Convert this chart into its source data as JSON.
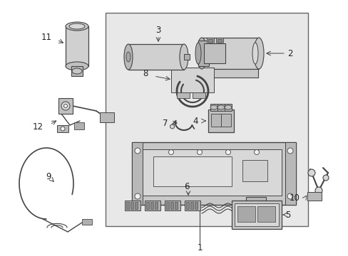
{
  "bg_color": "#ffffff",
  "box_bg": "#e8e8e8",
  "line_color": "#444444",
  "dark_line": "#222222",
  "part_fill": "#d8d8d8",
  "part_fill2": "#c8c8c8",
  "white_fill": "#f0f0f0"
}
